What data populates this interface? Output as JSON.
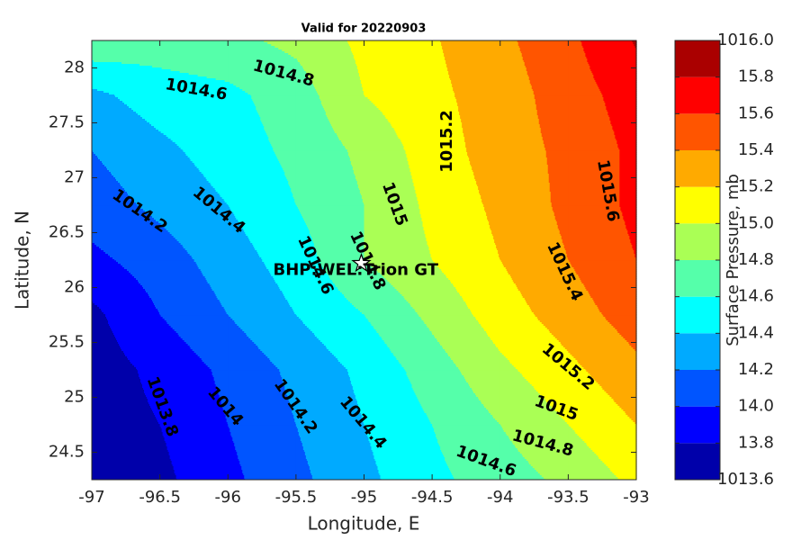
{
  "chart_data": {
    "type": "contourf",
    "title": "Valid for 20220903",
    "xlabel": "Longitude, E",
    "ylabel": "Latitude, N",
    "colorbar_label": "Surface Pressure, mb",
    "x": [
      -97,
      -96.5,
      -96,
      -95.5,
      -95,
      -94.5,
      -94,
      -93.5,
      -93
    ],
    "y": [
      24.25,
      24.75,
      25.25,
      25.75,
      26.25,
      26.75,
      27.25,
      27.75,
      28.25
    ],
    "z": [
      [
        1013.7,
        1013.75,
        1013.95,
        1014.15,
        1014.35,
        1014.55,
        1014.7,
        1014.85,
        1015.05
      ],
      [
        1013.7,
        1013.8,
        1014.0,
        1014.2,
        1014.4,
        1014.6,
        1014.8,
        1015.0,
        1015.2
      ],
      [
        1013.7,
        1013.85,
        1014.05,
        1014.25,
        1014.45,
        1014.7,
        1014.95,
        1015.15,
        1015.35
      ],
      [
        1013.75,
        1014.0,
        1014.2,
        1014.4,
        1014.6,
        1014.85,
        1015.1,
        1015.3,
        1015.5
      ],
      [
        1013.95,
        1014.1,
        1014.3,
        1014.5,
        1014.8,
        1015.0,
        1015.2,
        1015.4,
        1015.6
      ],
      [
        1014.1,
        1014.25,
        1014.4,
        1014.6,
        1014.8,
        1015.05,
        1015.25,
        1015.45,
        1015.65
      ],
      [
        1014.2,
        1014.35,
        1014.5,
        1014.65,
        1014.85,
        1015.1,
        1015.3,
        1015.45,
        1015.65
      ],
      [
        1014.35,
        1014.5,
        1014.55,
        1014.7,
        1015.0,
        1015.15,
        1015.3,
        1015.5,
        1015.7
      ],
      [
        1014.75,
        1014.7,
        1014.75,
        1014.85,
        1015.05,
        1015.18,
        1015.35,
        1015.55,
        1015.82
      ]
    ],
    "levels": [
      1013.6,
      1013.8,
      1014.0,
      1014.2,
      1014.4,
      1014.6,
      1014.8,
      1015.0,
      1015.2,
      1015.4,
      1015.6,
      1015.8,
      1016.0
    ],
    "colors": [
      "#0000aa",
      "#0000ff",
      "#0055ff",
      "#00aaff",
      "#00ffff",
      "#55ffaa",
      "#aaff55",
      "#ffff00",
      "#ffaa00",
      "#ff5500",
      "#ff0000",
      "#aa0000"
    ],
    "xlim": [
      -97,
      -93
    ],
    "ylim": [
      24.25,
      28.25
    ],
    "xticks": [
      -97,
      -96.5,
      -96,
      -95.5,
      -95,
      -94.5,
      -94,
      -93.5,
      -93
    ],
    "yticks": [
      24.5,
      25,
      25.5,
      26,
      26.5,
      27,
      27.5,
      28
    ],
    "clim": [
      1013.6,
      1016.0
    ],
    "cticks": [
      {
        "value": 1016.0,
        "label": "1016.0"
      },
      {
        "value": 1015.8,
        "label": "15.8"
      },
      {
        "value": 1015.6,
        "label": "15.6"
      },
      {
        "value": 1015.4,
        "label": "15.4"
      },
      {
        "value": 1015.2,
        "label": "15.2"
      },
      {
        "value": 1015.0,
        "label": "15.0"
      },
      {
        "value": 1014.8,
        "label": "14.8"
      },
      {
        "value": 1014.6,
        "label": "14.6"
      },
      {
        "value": 1014.4,
        "label": "14.4"
      },
      {
        "value": 1014.2,
        "label": "14.2"
      },
      {
        "value": 1014.0,
        "label": "14.0"
      },
      {
        "value": 1013.8,
        "label": "13.8"
      },
      1013.6
    ],
    "contour_labels": [
      "1014.8",
      "1014.6",
      "1015.2",
      "1015.6",
      "1014.2",
      "1014.4",
      "1015",
      "1014.6",
      "1014.8",
      "1015.4",
      "1015.2",
      "1013.8",
      "1014",
      "1014.2",
      "1014.4",
      "1015",
      "1014.8",
      "1014.6"
    ],
    "site": {
      "name": "BHP:WEL:Trion GT",
      "x": -95.02,
      "y": 26.22
    }
  }
}
